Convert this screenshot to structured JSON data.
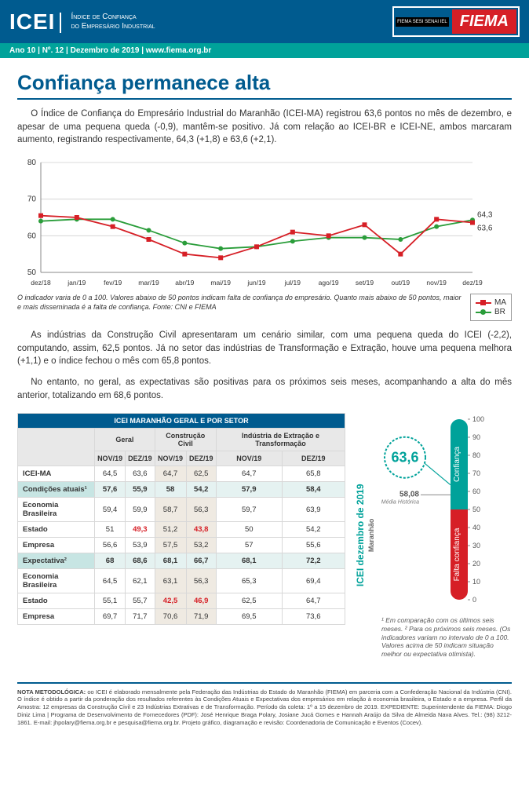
{
  "header": {
    "logo": "ICEI",
    "subtitle_l1": "Índice de Confiança",
    "subtitle_l2": "do Empresário Industrial",
    "issue": "Ano 10 | Nº. 12 | Dezembro de 2019 | www.fiema.org.br",
    "fiema_small": "FIEMA SESI SENAI IEL",
    "fiema_big": "FIEMA"
  },
  "title": "Confiança permanece alta",
  "para1": "O Índice de Confiança do Empresário Industrial do Maranhão (ICEI-MA) registrou 63,6 pontos no mês de dezembro, e apesar de uma pequena queda (-0,9), mantêm-se positivo. Já com relação ao ICEI-BR e ICEI-NE, ambos marcaram aumento, registrando respectivamente, 64,3 (+1,8) e 63,6 (+2,1).",
  "chart": {
    "y_ticks": [
      50,
      60,
      70,
      80
    ],
    "months": [
      "dez/18",
      "jan/19",
      "fev/19",
      "mar/19",
      "abr/19",
      "mai/19",
      "jun/19",
      "jul/19",
      "ago/19",
      "set/19",
      "out/19",
      "nov/19",
      "dez/19"
    ],
    "series_ma": {
      "color": "#d61f26",
      "values": [
        65.5,
        65.0,
        62.5,
        59.0,
        55.0,
        54.0,
        57.0,
        61.0,
        60.0,
        63.0,
        55.0,
        64.5,
        63.6
      ],
      "end_label": "63,6"
    },
    "series_br": {
      "color": "#2a9d3a",
      "values": [
        64.0,
        64.5,
        64.5,
        61.5,
        58.0,
        56.5,
        57.0,
        58.5,
        59.5,
        59.5,
        59.0,
        62.5,
        64.3
      ],
      "end_label": "64,3"
    },
    "legend_ma": "MA",
    "legend_br": "BR",
    "note": "O indicador varia de 0 a 100. Valores abaixo de 50 pontos indicam falta de confiança do empresário. Quanto mais abaixo de 50 pontos, maior e mais disseminada é a falta de confiança. Fonte: CNI e FIEMA"
  },
  "para2": "As indústrias da Construção Civil apresentaram um cenário similar, com uma pequena queda do ICEI (-2,2), computando, assim, 62,5 pontos. Já no setor das indústrias de Transformação e Extração, houve uma pequena melhora (+1,1) e o índice fechou o mês com 65,8 pontos.",
  "para3": "No entanto, no geral, as expectativas são positivas para os próximos seis meses, acompanhando a alta do mês anterior, totalizando em 68,6 pontos.",
  "table": {
    "title": "ICEI MARANHÃO GERAL E POR SETOR",
    "group_headers": [
      "Geral",
      "Construção Civil",
      "Indústria de Extração e Transformação"
    ],
    "month_headers": [
      "NOV/19",
      "DEZ/19",
      "NOV/19",
      "DEZ/19",
      "NOV/19",
      "DEZ/19"
    ],
    "rows": [
      {
        "label": "ICEI-MA",
        "section": false,
        "vals": [
          "64,5",
          "63,6",
          "64,7",
          "62,5",
          "64,7",
          "65,8"
        ],
        "red": []
      },
      {
        "label": "Condições atuais¹",
        "section": true,
        "vals": [
          "57,6",
          "55,9",
          "58",
          "54,2",
          "57,9",
          "58,4"
        ],
        "red": []
      },
      {
        "label": "Economia Brasileira",
        "section": false,
        "vals": [
          "59,4",
          "59,9",
          "58,7",
          "56,3",
          "59,7",
          "63,9"
        ],
        "red": []
      },
      {
        "label": "Estado",
        "section": false,
        "vals": [
          "51",
          "49,3",
          "51,2",
          "43,8",
          "50",
          "54,2"
        ],
        "red": [
          1,
          3
        ]
      },
      {
        "label": "Empresa",
        "section": false,
        "vals": [
          "56,6",
          "53,9",
          "57,5",
          "53,2",
          "57",
          "55,6"
        ],
        "red": []
      },
      {
        "label": "Expectativa²",
        "section": true,
        "vals": [
          "68",
          "68,6",
          "68,1",
          "66,7",
          "68,1",
          "72,2"
        ],
        "red": []
      },
      {
        "label": "Economia Brasileira",
        "section": false,
        "vals": [
          "64,5",
          "62,1",
          "63,1",
          "56,3",
          "65,3",
          "69,4"
        ],
        "red": []
      },
      {
        "label": "Estado",
        "section": false,
        "vals": [
          "55,1",
          "55,7",
          "42,5",
          "46,9",
          "62,5",
          "64,7"
        ],
        "red": [
          2,
          3
        ]
      },
      {
        "label": "Empresa",
        "section": false,
        "vals": [
          "69,7",
          "71,7",
          "70,6",
          "71,9",
          "69,5",
          "73,6"
        ],
        "red": []
      }
    ]
  },
  "gauge": {
    "vlabel": "ICEI dezembro de 2019",
    "sublabel": "Maranhão",
    "main_value": "63,6",
    "hist_label": "58,08",
    "hist_sub": "Média Histórica",
    "conf_label": "Confiança",
    "falta_label": "Falta confiança",
    "ticks": [
      0,
      10,
      20,
      30,
      40,
      50,
      60,
      70,
      80,
      90,
      100
    ],
    "colors": {
      "top": "#00a29a",
      "bottom": "#d61f26",
      "track": "#e8e8e8"
    }
  },
  "footnote": "¹ Em comparação com os últimos seis meses. ² Para os próximos seis meses. (Os indicadores variam no intervalo de 0 a 100. Valores acima de 50 indicam situação melhor ou expectativa otimista).",
  "footer": "NOTA METODOLÓGICA: oo ICEI é elaborado mensalmente pela Federação das Indústrias do Estado do Maranhão (FIEMA) em parceria com a Confederação Nacional da Indústria (CNI). O índice é obtido a partir da ponderação dos resultados referentes às Condições Atuais e Expectativas dos empresários em relação à economia brasileira, o Estado e a empresa. Perfil da Amostra: 12 empresas da Construção Civil e 23 Indústrias Extrativas e de Transformação. Período da coleta: 1º a 15 dezembro de 2019. EXPEDIENTE: Superintendente da FIEMA: Diogo Diniz Lima | Programa de Desenvolvimento de Fornecedores (PDF): José Henrique Braga Polary, Josiane Jucá Gomes e Hannah Araújo da Silva de Almeida Nava Alves. Tel.: (98) 3212-1861. E-mail: jhpolary@fiema.org.br e pesquisa@fiema.org.br. Projeto gráfico, diagramação e revisão: Coordenadoria de Comunicação e Eventos (Cocev)."
}
